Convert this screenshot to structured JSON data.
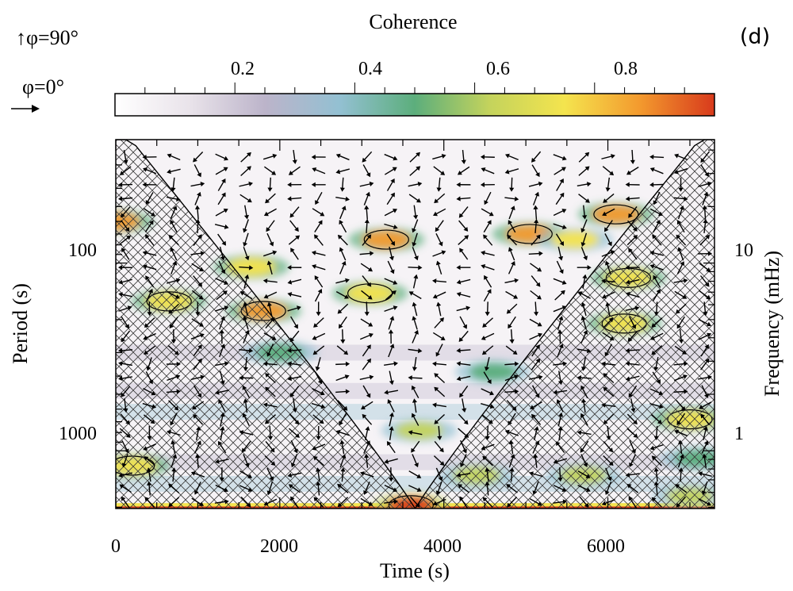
{
  "panel_label": "(d)",
  "legend": {
    "phase_up": "↑φ=90°",
    "phase_right": "φ=0°"
  },
  "colorbar": {
    "title": "Coherence",
    "ticks": [
      "0.2",
      "0.4",
      "0.6",
      "0.8"
    ],
    "range": [
      0,
      1
    ],
    "colors": [
      "#ffffff",
      "#e9e3ea",
      "#bcb4ca",
      "#93c0d2",
      "#5cae7c",
      "#c4d35c",
      "#f4e44e",
      "#f39a2e",
      "#d83a1c"
    ]
  },
  "chart_data": {
    "type": "heatmap",
    "xlabel": "Time (s)",
    "ylabel": "Period (s)",
    "ylabel_right": "Frequency (mHz)",
    "x_ticks": [
      "0",
      "2000",
      "4000",
      "6000"
    ],
    "y_ticks": [
      "100",
      "1000"
    ],
    "y_ticks_right": [
      "10",
      "1"
    ],
    "xlim": [
      0,
      7300
    ],
    "ylim": [
      22,
      2030
    ],
    "y_scale": "log",
    "blobs": [
      {
        "t": 1800,
        "period": 180,
        "value": 0.92
      },
      {
        "t": 5050,
        "period": 70,
        "value": 0.9
      },
      {
        "t": 6100,
        "period": 55,
        "value": 0.93
      },
      {
        "t": 3300,
        "period": 75,
        "value": 0.82
      },
      {
        "t": 3100,
        "period": 145,
        "value": 0.8
      },
      {
        "t": 650,
        "period": 160,
        "value": 0.8
      },
      {
        "t": 6200,
        "period": 210,
        "value": 0.8
      },
      {
        "t": 6250,
        "period": 120,
        "value": 0.78
      },
      {
        "t": 1650,
        "period": 105,
        "value": 0.74
      },
      {
        "t": 3700,
        "period": 780,
        "value": 0.6
      },
      {
        "t": 4600,
        "period": 380,
        "value": 0.55
      },
      {
        "t": 4400,
        "period": 1350,
        "value": 0.58
      },
      {
        "t": 5700,
        "period": 1350,
        "value": 0.62
      },
      {
        "t": 7000,
        "period": 680,
        "value": 0.8
      },
      {
        "t": 200,
        "period": 1200,
        "value": 0.8
      },
      {
        "t": 3600,
        "period": 1950,
        "value": 0.95
      },
      {
        "t": 7000,
        "period": 1750,
        "value": 0.6
      },
      {
        "t": 0,
        "period": 60,
        "value": 0.9
      },
      {
        "t": 2000,
        "period": 300,
        "value": 0.55
      },
      {
        "t": 5600,
        "period": 75,
        "value": 0.7
      },
      {
        "t": 7100,
        "period": 1100,
        "value": 0.55
      }
    ],
    "cone_of_influence": "hatched region outside the U-shaped curve",
    "phase_arrows": "arrows indicate relative phase"
  }
}
